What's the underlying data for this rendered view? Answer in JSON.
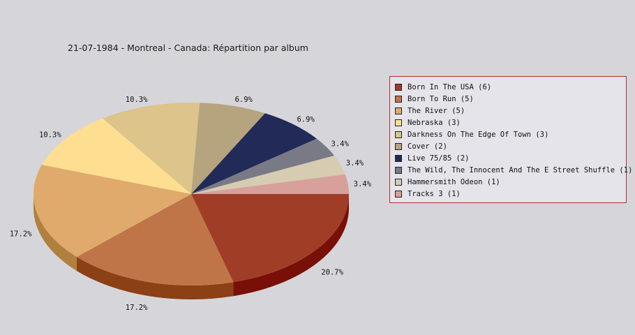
{
  "chart_data": {
    "type": "pie",
    "title": "21-07-1984 - Montreal - Canada:  Répartition par album",
    "slices": [
      {
        "label": "Born In The USA (6)",
        "value": 6,
        "pct_label": "20.7%",
        "color": "#a03d26",
        "side_color": "#781008"
      },
      {
        "label": "Born To Run (5)",
        "value": 5,
        "pct_label": "17.2%",
        "color": "#c07548",
        "side_color": "#8c4016"
      },
      {
        "label": "The River (5)",
        "value": 5,
        "pct_label": "17.2%",
        "color": "#e0aa6c",
        "side_color": "#b0803e"
      },
      {
        "label": "Nebraska (3)",
        "value": 3,
        "pct_label": "10.3%",
        "color": "#fede90",
        "side_color": "#cdaa60"
      },
      {
        "label": "Darkness On The Edge Of Town (3)",
        "value": 3,
        "pct_label": "10.3%",
        "color": "#dcc48a",
        "side_color": "#aa925a"
      },
      {
        "label": "Cover (2)",
        "value": 2,
        "pct_label": "6.9%",
        "color": "#b6a47e",
        "side_color": "#86744e"
      },
      {
        "label": "Live 75/85 (2)",
        "value": 2,
        "pct_label": "6.9%",
        "color": "#222a58",
        "side_color": "#10163a"
      },
      {
        "label": "The Wild, The Innocent And The E Street Shuffle (1)",
        "value": 1,
        "pct_label": "3.4%",
        "color": "#7a7a86",
        "side_color": "#4c4c58"
      },
      {
        "label": "Hammersmith Odeon  (1)",
        "value": 1,
        "pct_label": "3.4%",
        "color": "#d6ccb2",
        "side_color": "#a69c82"
      },
      {
        "label": "Tracks 3 (1)",
        "value": 1,
        "pct_label": "3.4%",
        "color": "#d8a09a",
        "side_color": "#a8706a"
      }
    ],
    "legend_position": "right"
  }
}
